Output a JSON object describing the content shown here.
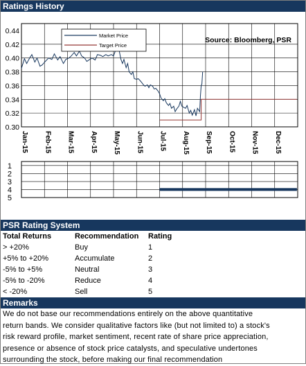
{
  "ratings_history": {
    "header": "Ratings History"
  },
  "chart_data": [
    {
      "type": "line",
      "source_note": "Source: Bloomberg, PSR",
      "x_tick_labels": [
        "Jan-15",
        "Feb-15",
        "Mar-15",
        "Apr-15",
        "May-15",
        "Jun-15",
        "Jul-15",
        "Aug-15",
        "Sep-15",
        "Oct-15",
        "Nov-15",
        "Dec-15"
      ],
      "y_tick_labels": [
        "0.44",
        "0.42",
        "0.40",
        "0.38",
        "0.36",
        "0.34",
        "0.32",
        "0.30"
      ],
      "ylim": [
        0.3,
        0.45
      ],
      "grid": true,
      "legend_position": "top-left",
      "series": [
        {
          "name": "Market Price",
          "color": "#17375e",
          "points": [
            [
              "Jan-01",
              0.385
            ],
            [
              "Jan-05",
              0.399
            ],
            [
              "Jan-08",
              0.392
            ],
            [
              "Jan-12",
              0.4
            ],
            [
              "Jan-15",
              0.405
            ],
            [
              "Jan-19",
              0.394
            ],
            [
              "Jan-22",
              0.4
            ],
            [
              "Jan-26",
              0.388
            ],
            [
              "Jan-29",
              0.39
            ],
            [
              "Feb-02",
              0.395
            ],
            [
              "Feb-06",
              0.4
            ],
            [
              "Feb-10",
              0.398
            ],
            [
              "Feb-13",
              0.406
            ],
            [
              "Feb-17",
              0.397
            ],
            [
              "Feb-20",
              0.402
            ],
            [
              "Feb-24",
              0.392
            ],
            [
              "Feb-27",
              0.398
            ],
            [
              "Mar-03",
              0.4
            ],
            [
              "Mar-06",
              0.403
            ],
            [
              "Mar-10",
              0.408
            ],
            [
              "Mar-13",
              0.403
            ],
            [
              "Mar-17",
              0.41
            ],
            [
              "Mar-20",
              0.403
            ],
            [
              "Mar-24",
              0.4
            ],
            [
              "Mar-27",
              0.395
            ],
            [
              "Mar-31",
              0.398
            ],
            [
              "Apr-03",
              0.4
            ],
            [
              "Apr-07",
              0.397
            ],
            [
              "Apr-10",
              0.405
            ],
            [
              "Apr-14",
              0.404
            ],
            [
              "Apr-17",
              0.402
            ],
            [
              "Apr-21",
              0.405
            ],
            [
              "Apr-24",
              0.403
            ],
            [
              "Apr-28",
              0.405
            ],
            [
              "May-01",
              0.403
            ],
            [
              "May-04",
              0.412
            ],
            [
              "May-06",
              0.42
            ],
            [
              "May-08",
              0.414
            ],
            [
              "May-11",
              0.398
            ],
            [
              "May-13",
              0.392
            ],
            [
              "May-15",
              0.398
            ],
            [
              "May-18",
              0.386
            ],
            [
              "May-20",
              0.392
            ],
            [
              "May-22",
              0.38
            ],
            [
              "May-25",
              0.376
            ],
            [
              "May-27",
              0.38
            ],
            [
              "May-29",
              0.37
            ],
            [
              "Jun-01",
              0.369
            ],
            [
              "Jun-03",
              0.37
            ],
            [
              "Jun-05",
              0.368
            ],
            [
              "Jun-08",
              0.364
            ],
            [
              "Jun-10",
              0.361
            ],
            [
              "Jun-12",
              0.359
            ],
            [
              "Jun-15",
              0.361
            ],
            [
              "Jun-17",
              0.357
            ],
            [
              "Jun-19",
              0.361
            ],
            [
              "Jun-22",
              0.359
            ],
            [
              "Jun-24",
              0.355
            ],
            [
              "Jun-26",
              0.356
            ],
            [
              "Jun-29",
              0.352
            ],
            [
              "Jul-01",
              0.348
            ],
            [
              "Jul-03",
              0.342
            ],
            [
              "Jul-06",
              0.338
            ],
            [
              "Jul-08",
              0.341
            ],
            [
              "Jul-10",
              0.335
            ],
            [
              "Jul-13",
              0.331
            ],
            [
              "Jul-15",
              0.334
            ],
            [
              "Jul-17",
              0.327
            ],
            [
              "Jul-20",
              0.33
            ],
            [
              "Jul-22",
              0.322
            ],
            [
              "Jul-24",
              0.326
            ],
            [
              "Jul-27",
              0.33
            ],
            [
              "Jul-29",
              0.337
            ],
            [
              "Jul-31",
              0.33
            ],
            [
              "Aug-03",
              0.328
            ],
            [
              "Aug-05",
              0.327
            ],
            [
              "Aug-07",
              0.331
            ],
            [
              "Aug-10",
              0.32
            ],
            [
              "Aug-12",
              0.324
            ],
            [
              "Aug-14",
              0.317
            ],
            [
              "Aug-17",
              0.325
            ],
            [
              "Aug-19",
              0.316
            ],
            [
              "Aug-21",
              0.327
            ],
            [
              "Aug-24",
              0.322
            ],
            [
              "Aug-25",
              0.345
            ],
            [
              "Aug-26",
              0.36
            ],
            [
              "Aug-27",
              0.362
            ],
            [
              "Aug-28",
              0.38
            ]
          ]
        },
        {
          "name": "Target Price",
          "color": "#953735",
          "points": [
            [
              "Jul-01",
              0.31
            ],
            [
              "Aug-26",
              0.31
            ],
            [
              "Aug-26",
              0.34
            ],
            [
              "Dec-31",
              0.34
            ]
          ]
        }
      ]
    },
    {
      "type": "line",
      "y_tick_labels": [
        "1",
        "2",
        "3",
        "4",
        "5"
      ],
      "ylim": [
        0.5,
        5
      ],
      "grid": true,
      "series": [
        {
          "color": "#17375e",
          "points": [
            [
              "Jul-01",
              4
            ],
            [
              "Dec-31",
              4
            ]
          ]
        }
      ]
    }
  ],
  "psr_rating_system": {
    "header": "PSR Rating System",
    "columns": [
      "Total Returns",
      "Recommendation",
      "Rating"
    ],
    "rows": [
      [
        "> +20%",
        "Buy",
        "1"
      ],
      [
        "+5% to +20%",
        "Accumulate",
        "2"
      ],
      [
        "-5% to +5%",
        "Neutral",
        "3"
      ],
      [
        "-5% to -20%",
        "Reduce",
        "4"
      ],
      [
        "< -20%",
        "Sell",
        "5"
      ]
    ]
  },
  "remarks": {
    "header": "Remarks",
    "lines": [
      "We do not base our recommendations entirely on the  above quantitative",
      "return bands.  We consider qualitative factors like (but not limited to) a stock's",
      "risk reward profile, market sentiment, recent rate of share price appreciation,",
      "presence or absence of stock price catalysts, and speculative undertones",
      "surrounding the stock, before making our final recommendation"
    ]
  }
}
